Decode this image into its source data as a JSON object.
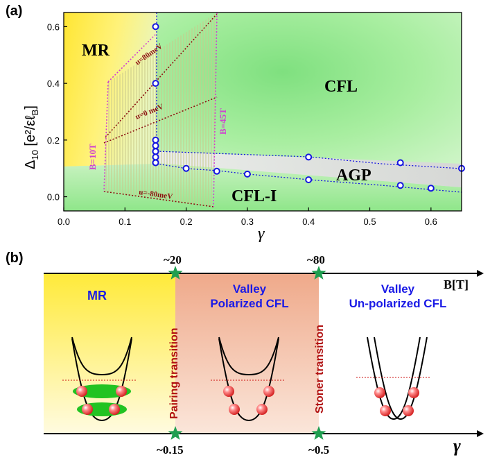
{
  "panel_a": {
    "label": "(a)",
    "ylabel_main": "Δ",
    "ylabel_sub": "10",
    "ylabel_rest": " [e²/εℓ",
    "ylabel_sub2": "B",
    "ylabel_end": "]",
    "xlabel": "γ",
    "xticks": [
      "0.0",
      "0.1",
      "0.2",
      "0.3",
      "0.4",
      "0.5",
      "0.6"
    ],
    "yticks": [
      "0.0",
      "0.2",
      "0.4",
      "0.6"
    ],
    "regions": {
      "mr": "MR",
      "cfl": "CFL",
      "agp": "AGP",
      "cfli": "CFL-I"
    },
    "line_labels": {
      "u_pos": "u=80meV",
      "u_zero": "u=0 meV",
      "u_neg": "u=-80meV",
      "b_low": "B=10T",
      "b_high": "B=45T"
    },
    "colors": {
      "marker": "#1414e0",
      "u_lines": "#8b1010",
      "b_lines": "#d040d0",
      "hatch": "#c9c98a"
    }
  },
  "panel_b": {
    "label": "(b)",
    "b_axis_label": "B[T]",
    "gamma_axis_label": "γ",
    "b_markers": [
      "~20",
      "~80"
    ],
    "gamma_markers": [
      "~0.15",
      "~0.5"
    ],
    "phase_labels": {
      "mr": "MR",
      "valley_line1": "Valley",
      "valley_line2": "Polarized CFL",
      "unpol_line1": "Valley",
      "unpol_line2": "Un-polarized  CFL"
    },
    "transitions": {
      "pairing": "Pairing transition",
      "stoner": "Stoner transition"
    },
    "colors": {
      "label_blue": "#1a1ae6",
      "transition_red": "#b01010",
      "star_green": "#1f9e50"
    }
  },
  "chart_data": {
    "type": "scatter",
    "xlabel": "γ",
    "ylabel": "Δ10 [e²/εℓB]",
    "xlim": [
      0.0,
      0.65
    ],
    "ylim": [
      -0.05,
      0.65
    ],
    "series": [
      {
        "values": [
          [
            0.15,
            0.6
          ],
          [
            0.15,
            0.4
          ],
          [
            0.15,
            0.2
          ],
          [
            0.15,
            0.18
          ],
          [
            0.15,
            0.16
          ],
          [
            0.15,
            0.14
          ],
          [
            0.15,
            0.12
          ]
        ]
      },
      {
        "values": [
          [
            0.15,
            0.16
          ],
          [
            0.4,
            0.14
          ],
          [
            0.55,
            0.12
          ],
          [
            0.65,
            0.1
          ]
        ]
      },
      {
        "values": [
          [
            0.15,
            0.12
          ],
          [
            0.2,
            0.1
          ],
          [
            0.25,
            0.09
          ],
          [
            0.3,
            0.08
          ],
          [
            0.4,
            0.06
          ],
          [
            0.55,
            0.04
          ],
          [
            0.6,
            0.03
          ]
        ]
      }
    ]
  }
}
